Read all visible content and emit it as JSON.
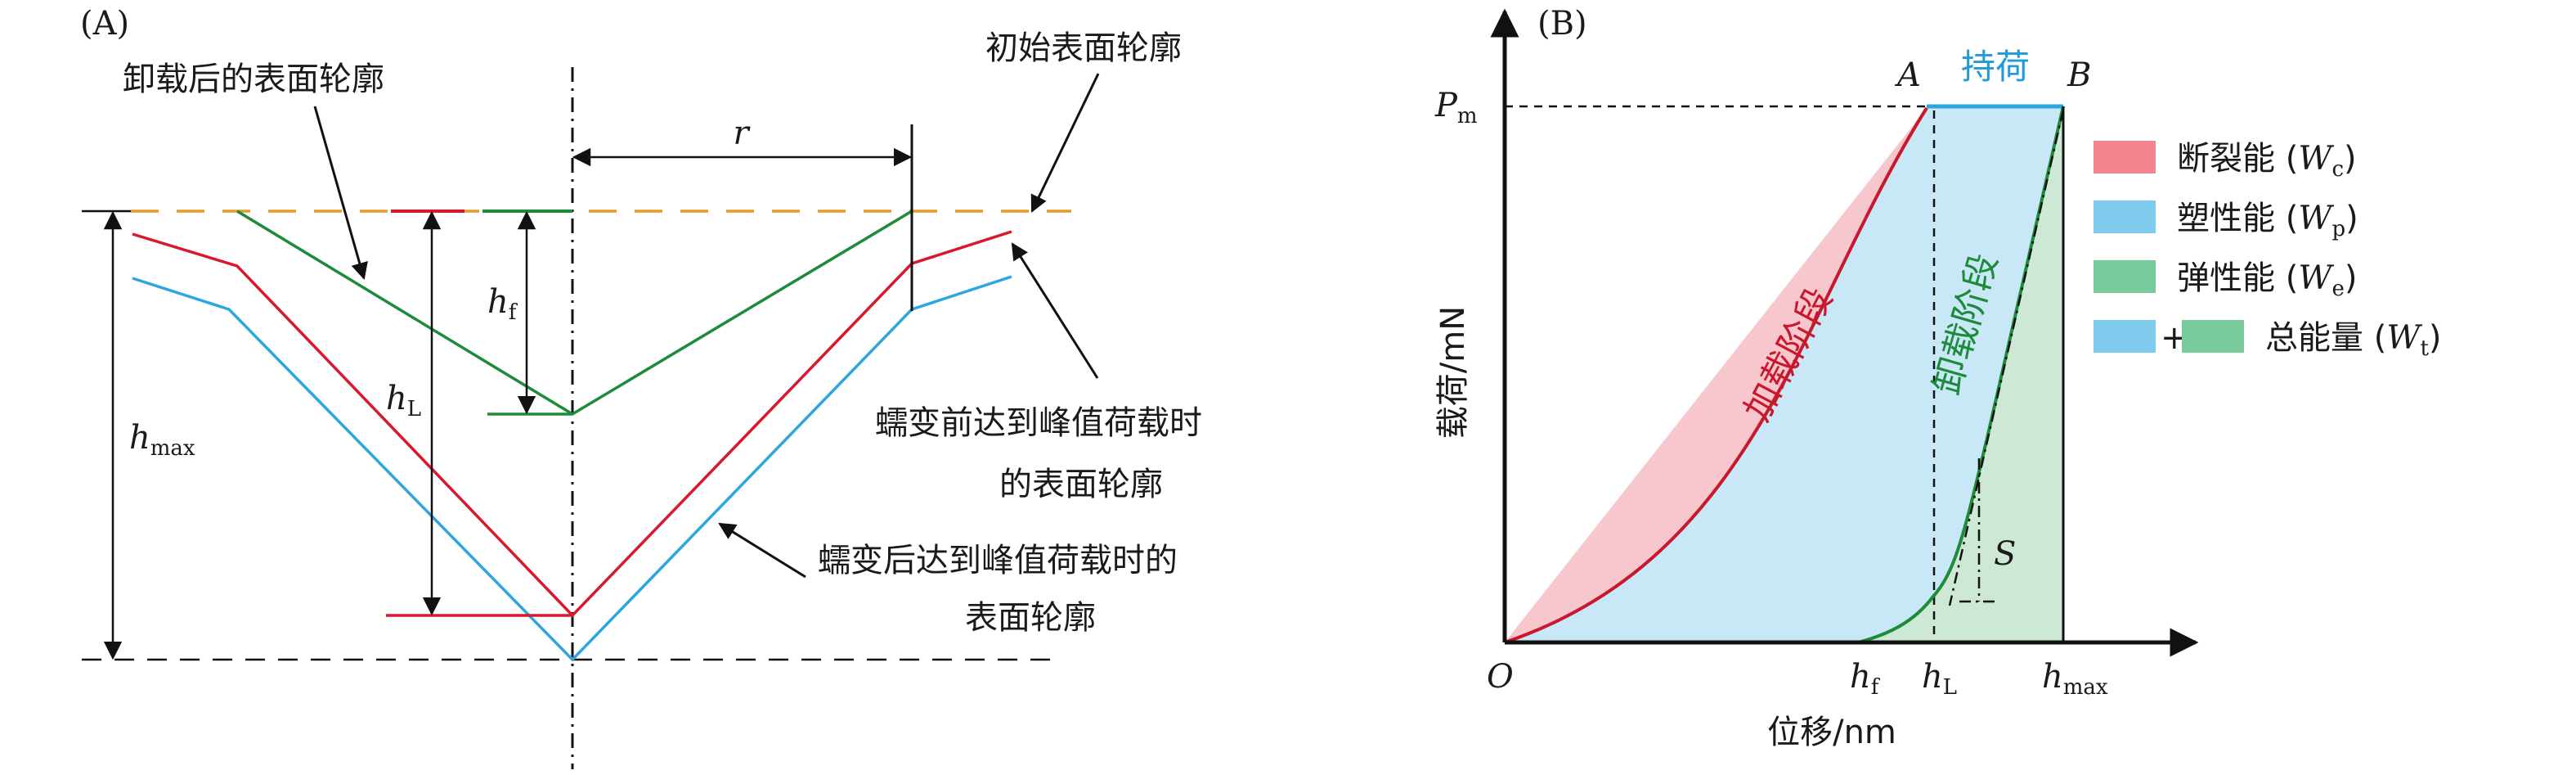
{
  "panel_a": {
    "label": "(A)",
    "annotations": {
      "after_unload": "卸载后的表面轮廓",
      "initial": "初始表面轮廓",
      "before_creep_l1": "蠕变前达到峰值荷载时",
      "before_creep_l2": "的表面轮廓",
      "after_creep_l1": "蠕变后达到峰值荷载时的",
      "after_creep_l2": "表面轮廓"
    },
    "symbols": {
      "r": "r",
      "hf_main": "h",
      "hf_sub": "f",
      "hl_main": "h",
      "hl_sub": "L",
      "hmax_main": "h",
      "hmax_sub": "max"
    },
    "colors": {
      "initial": "#E39B2D",
      "unloaded": "#1E8B3A",
      "before_creep": "#D7192E",
      "after_creep": "#2CA7DD"
    }
  },
  "panel_b": {
    "label": "(B)",
    "ylabel": "载荷/mN",
    "xlabel": "位移/nm",
    "origin": "O",
    "pm_main": "P",
    "pm_sub": "m",
    "point_a": "A",
    "point_b": "B",
    "hold_label": "持荷",
    "loading_label": "加载阶段",
    "unloading_label": "卸载阶段",
    "stiffness_label": "S",
    "x_ticks": {
      "hf_main": "h",
      "hf_sub": "f",
      "hl_main": "h",
      "hl_sub": "L",
      "hmax_main": "h",
      "hmax_sub": "max"
    },
    "legend": [
      {
        "text": "断裂能 (",
        "sym": "W",
        "sub": "c",
        "close": ")",
        "color": "#F2848D"
      },
      {
        "text": "塑性能 (",
        "sym": "W",
        "sub": "p",
        "close": ")",
        "color": "#7FCBEE"
      },
      {
        "text": "弹性能 (",
        "sym": "W",
        "sub": "e",
        "close": ")",
        "color": "#7ACB9B"
      },
      {
        "text": "总能量 (",
        "sym": "W",
        "sub": "t",
        "close": ")",
        "plus": "+"
      }
    ],
    "colors": {
      "fracture_fill": "#F8C7CE",
      "plastic_fill": "#C8E8F7",
      "elastic_fill": "#CDE9D6",
      "loading_curve": "#C9172B",
      "unloading_curve": "#1E8B3A",
      "hold_line": "#2CA7DD",
      "hold_text": "#1F9BD7",
      "loading_text": "#C9172B",
      "unloading_text": "#1E8B3A"
    }
  }
}
